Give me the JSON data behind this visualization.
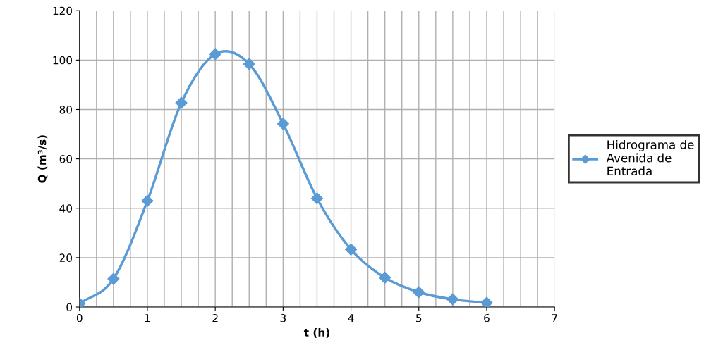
{
  "chart_data": {
    "type": "line",
    "xlabel": "t (h)",
    "ylabel": "Q (m³/s)",
    "x": [
      0,
      0.5,
      1,
      1.5,
      2,
      2.5,
      3,
      3.5,
      4,
      4.5,
      5,
      5.5,
      6
    ],
    "series": [
      {
        "name": "Hidrograma de\nAvenida de\nEntrada",
        "color": "#5b9bd5",
        "values": [
          1.4,
          11.4,
          43,
          82.7,
          102.4,
          98.4,
          74.2,
          44,
          23.3,
          11.9,
          6,
          3.1,
          1.7
        ]
      }
    ],
    "xlim": [
      0,
      7
    ],
    "xticks": [
      0,
      {
        "value": 0.25,
        "label": null
      },
      {
        "value": 0.5,
        "label": null
      },
      {
        "value": 0.75,
        "label": null
      },
      1,
      {
        "value": 1.25,
        "label": null
      },
      {
        "value": 1.5,
        "label": null
      },
      {
        "value": 1.75,
        "label": null
      },
      2,
      {
        "value": 2.25,
        "label": null
      },
      {
        "value": 2.5,
        "label": null
      },
      {
        "value": 2.75,
        "label": null
      },
      3,
      {
        "value": 3.25,
        "label": null
      },
      {
        "value": 3.5,
        "label": null
      },
      {
        "value": 3.75,
        "label": null
      },
      4,
      {
        "value": 4.25,
        "label": null
      },
      {
        "value": 4.5,
        "label": null
      },
      {
        "value": 4.75,
        "label": null
      },
      5,
      {
        "value": 5.25,
        "label": null
      },
      {
        "value": 5.5,
        "label": null
      },
      {
        "value": 5.75,
        "label": null
      },
      6,
      {
        "value": 6.25,
        "label": null
      },
      {
        "value": 6.5,
        "label": null
      },
      {
        "value": 6.75,
        "label": null
      },
      7
    ],
    "ylim": [
      0,
      120
    ],
    "yticks": [
      0,
      20,
      40,
      60,
      80,
      100,
      120
    ],
    "grid": true,
    "legend": "right",
    "marker": "diamond",
    "line_style": "solid"
  }
}
